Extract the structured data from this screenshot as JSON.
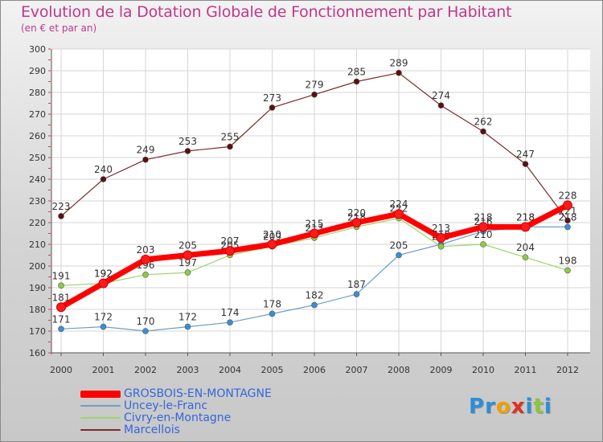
{
  "title": "Evolution de la Dotation Globale de Fonctionnement par Habitant",
  "subtitle": "(en € et par an)",
  "logo": {
    "letters": [
      {
        "ch": "P",
        "color": "#2b8fd6"
      },
      {
        "ch": "r",
        "color": "#2b8fd6"
      },
      {
        "ch": "o",
        "color": "#f0a000"
      },
      {
        "ch": "x",
        "color": "#e0301e"
      },
      {
        "ch": "i",
        "color": "#2b8fd6"
      },
      {
        "ch": "t",
        "color": "#8cc63f"
      },
      {
        "ch": "i",
        "color": "#2b8fd6"
      }
    ]
  },
  "chart_data": {
    "type": "line",
    "x": [
      "2000",
      "2001",
      "2002",
      "2003",
      "2004",
      "2005",
      "2006",
      "2007",
      "2008",
      "2009",
      "2010",
      "2011",
      "2012"
    ],
    "ylim": [
      160,
      300
    ],
    "yticks": [
      160,
      170,
      180,
      190,
      200,
      210,
      220,
      230,
      240,
      250,
      260,
      270,
      280,
      290,
      300
    ],
    "grid": true,
    "legend_position": "bottom-left",
    "series": [
      {
        "name": "Marcellois",
        "color": "#7b2a2a",
        "marker": "#5a1010",
        "width": 1.2,
        "values": [
          223,
          240,
          249,
          253,
          255,
          273,
          279,
          285,
          289,
          274,
          262,
          247,
          221
        ],
        "labels": [
          "223",
          "240",
          "249",
          "253",
          "255",
          "273",
          "279",
          "285",
          "289",
          "274",
          "262",
          "247",
          "221"
        ]
      },
      {
        "name": "Uncey-le-Franc",
        "color": "#6e9ec8",
        "marker": "#3a8fd0",
        "width": 1.2,
        "values": [
          171,
          172,
          170,
          172,
          174,
          178,
          182,
          187,
          205,
          210,
          216,
          218,
          218
        ],
        "labels": [
          "171",
          "172",
          "170",
          "172",
          "174",
          "178",
          "182",
          "187",
          "205",
          "210",
          "216",
          "218",
          "218"
        ]
      },
      {
        "name": "Civry-en-Montagne",
        "color": "#9fd46a",
        "marker": "#8ccc40",
        "width": 1.2,
        "values": [
          191,
          192,
          196,
          197,
          205,
          209,
          213,
          218,
          222,
          209,
          210,
          204,
          198
        ],
        "labels": [
          "191",
          "192",
          "196",
          "197",
          "205",
          "209",
          "213",
          "218",
          "222",
          "209",
          "210",
          "204",
          "198"
        ]
      },
      {
        "name": "GROSBOIS-EN-MONTAGNE",
        "color": "#ff0000",
        "marker": "#ff1a1a",
        "width": 7,
        "values": [
          181,
          192,
          203,
          205,
          207,
          210,
          215,
          220,
          224,
          213,
          218,
          218,
          228
        ],
        "labels": [
          "181",
          "192",
          "203",
          "205",
          "207",
          "210",
          "215",
          "220",
          "224",
          "213",
          "218",
          "218",
          "228"
        ]
      }
    ],
    "legend_order": [
      3,
      1,
      2,
      0
    ]
  }
}
